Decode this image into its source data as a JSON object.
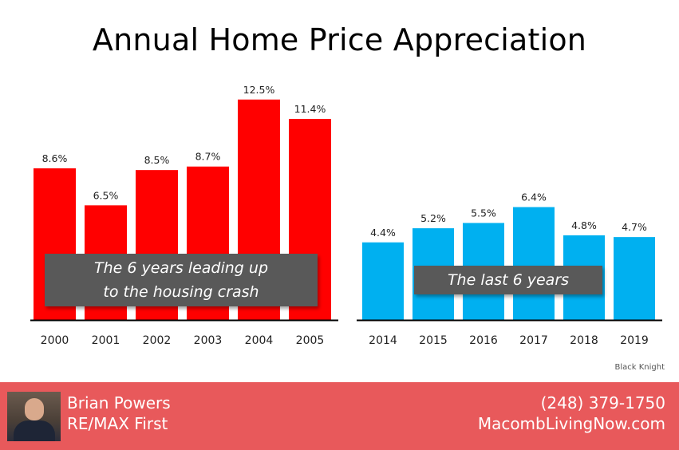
{
  "title": "Annual Home Price Appreciation",
  "chart_data": [
    {
      "type": "bar",
      "categories": [
        "2000",
        "2001",
        "2002",
        "2003",
        "2004",
        "2005"
      ],
      "values": [
        8.6,
        6.5,
        8.5,
        8.7,
        12.5,
        11.4
      ],
      "labels": [
        "8.6%",
        "6.5%",
        "8.5%",
        "8.7%",
        "12.5%",
        "11.4%"
      ],
      "color": "#ff0000",
      "annotation": "The 6 years leading up to the housing crash",
      "annotation_lines": [
        "The 6 years leading up",
        "to the housing crash"
      ]
    },
    {
      "type": "bar",
      "categories": [
        "2014",
        "2015",
        "2016",
        "2017",
        "2018",
        "2019"
      ],
      "values": [
        4.4,
        5.2,
        5.5,
        6.4,
        4.8,
        4.7
      ],
      "labels": [
        "4.4%",
        "5.2%",
        "5.5%",
        "6.4%",
        "4.8%",
        "4.7%"
      ],
      "color": "#00b0f0",
      "annotation": "The last 6 years"
    }
  ],
  "source": "Black Knight",
  "footer": {
    "name": "Brian Powers",
    "company": "RE/MAX First",
    "phone": "(248) 379-1750",
    "website": "MacombLivingNow.com",
    "background_color": "#e8595b"
  }
}
